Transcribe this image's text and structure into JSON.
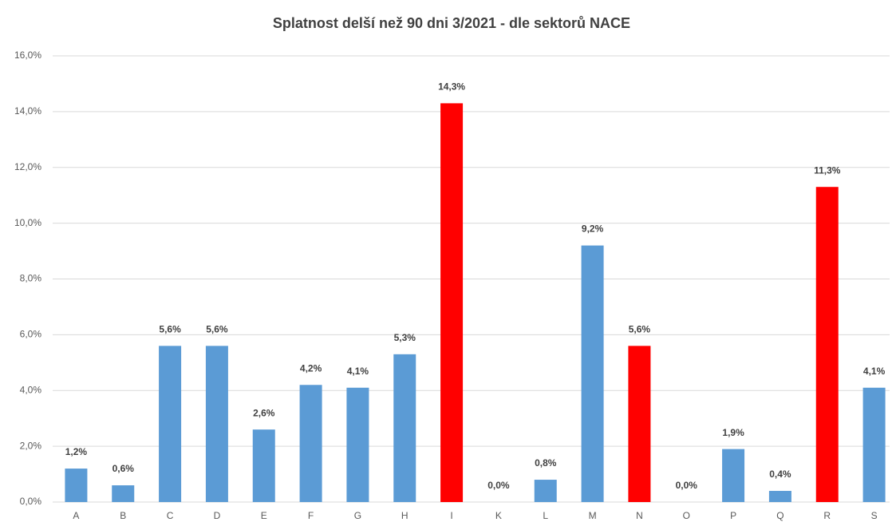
{
  "chart_data": {
    "type": "bar",
    "title": "Splatnost delší než 90 dni 3/2021 - dle sektorů NACE",
    "categories": [
      "A",
      "B",
      "C",
      "D",
      "E",
      "F",
      "G",
      "H",
      "I",
      "K",
      "L",
      "M",
      "N",
      "O",
      "P",
      "Q",
      "R",
      "S"
    ],
    "values": [
      1.2,
      0.6,
      5.6,
      5.6,
      2.6,
      4.2,
      4.1,
      5.3,
      14.3,
      0,
      0.8,
      9.2,
      5.6,
      0,
      1.9,
      0.4,
      11.3,
      4.1
    ],
    "value_labels": [
      "1,2%",
      "0,6%",
      "5,6%",
      "5,6%",
      "2,6%",
      "4,2%",
      "4,1%",
      "5,3%",
      "14,3%",
      "0,0%",
      "0,8%",
      "9,2%",
      "5,6%",
      "0,0%",
      "1,9%",
      "0,4%",
      "11,3%",
      "4,1%"
    ],
    "colors": [
      "#5b9bd5",
      "#5b9bd5",
      "#5b9bd5",
      "#5b9bd5",
      "#5b9bd5",
      "#5b9bd5",
      "#5b9bd5",
      "#5b9bd5",
      "#ff0000",
      "#5b9bd5",
      "#5b9bd5",
      "#5b9bd5",
      "#ff0000",
      "#5b9bd5",
      "#5b9bd5",
      "#5b9bd5",
      "#ff0000",
      "#5b9bd5"
    ],
    "ylim": [
      0,
      16
    ],
    "yticks": [
      {
        "value": 0,
        "label": "0,0%"
      },
      {
        "value": 2,
        "label": "2,0%"
      },
      {
        "value": 4,
        "label": "4,0%"
      },
      {
        "value": 6,
        "label": "6,0%"
      },
      {
        "value": 8,
        "label": "8,0%"
      },
      {
        "value": 10,
        "label": "10,0%"
      },
      {
        "value": 12,
        "label": "12,0%"
      },
      {
        "value": 14,
        "label": "14,0%"
      },
      {
        "value": 16,
        "label": "16,0%"
      }
    ],
    "grid": true
  }
}
